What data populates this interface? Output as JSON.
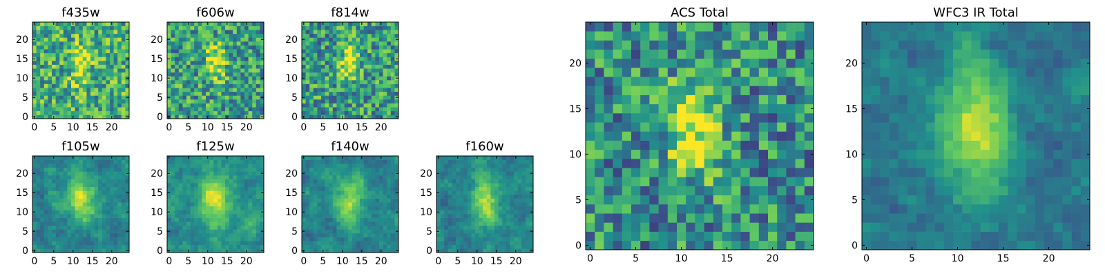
{
  "chart_data": {
    "type": "heatmap",
    "colormap": "viridis",
    "colors": {
      "low": "#440154",
      "mid_low": "#3b528b",
      "mid": "#21918c",
      "mid_high": "#5ec962",
      "high": "#fde725"
    },
    "grid_size": [
      25,
      25
    ],
    "xlim": [
      0,
      24
    ],
    "ylim": [
      0,
      24
    ],
    "origin": "lower",
    "panels": [
      {
        "title": "f435w",
        "group": "small",
        "xticks": [
          "0",
          "5",
          "10",
          "15",
          "20"
        ],
        "yticks": [
          "0",
          "5",
          "10",
          "15",
          "20"
        ],
        "source": {
          "cx": 12,
          "cy": 13,
          "sx": 1.6,
          "sy": 3.5,
          "peak": 0.45
        },
        "background": 0.62,
        "noise": 0.3,
        "smooth": 0
      },
      {
        "title": "f606w",
        "group": "small",
        "xticks": [
          "0",
          "5",
          "10",
          "15",
          "20"
        ],
        "yticks": [
          "0",
          "5",
          "10",
          "15",
          "20"
        ],
        "source": {
          "cx": 12,
          "cy": 14,
          "sx": 1.7,
          "sy": 3.5,
          "peak": 0.45
        },
        "background": 0.55,
        "noise": 0.3,
        "smooth": 0
      },
      {
        "title": "f814w",
        "group": "small",
        "xticks": [
          "0",
          "5",
          "10",
          "15",
          "20"
        ],
        "yticks": [
          "0",
          "5",
          "10",
          "15",
          "20"
        ],
        "source": {
          "cx": 12,
          "cy": 14,
          "sx": 1.7,
          "sy": 3.5,
          "peak": 0.45
        },
        "background": 0.55,
        "noise": 0.3,
        "smooth": 0
      },
      {
        "title": "f105w",
        "group": "small",
        "xticks": [
          "0",
          "5",
          "10",
          "15",
          "20"
        ],
        "yticks": [
          "0",
          "5",
          "10",
          "15",
          "20"
        ],
        "source": {
          "cx": 12,
          "cy": 13,
          "sx": 2.5,
          "sy": 4.5,
          "peak": 0.5
        },
        "background": 0.45,
        "noise": 0.22,
        "smooth": 1
      },
      {
        "title": "f125w",
        "group": "small",
        "xticks": [
          "0",
          "5",
          "10",
          "15",
          "20"
        ],
        "yticks": [
          "0",
          "5",
          "10",
          "15",
          "20"
        ],
        "source": {
          "cx": 12,
          "cy": 13,
          "sx": 2.5,
          "sy": 4.5,
          "peak": 0.5
        },
        "background": 0.5,
        "noise": 0.22,
        "smooth": 1
      },
      {
        "title": "f140w",
        "group": "small",
        "xticks": [
          "0",
          "5",
          "10",
          "15",
          "20"
        ],
        "yticks": [
          "0",
          "5",
          "10",
          "15",
          "20"
        ],
        "source": {
          "cx": 12,
          "cy": 13,
          "sx": 2.3,
          "sy": 4.5,
          "peak": 0.5
        },
        "background": 0.45,
        "noise": 0.22,
        "smooth": 1
      },
      {
        "title": "f160w",
        "group": "small",
        "xticks": [
          "0",
          "5",
          "10",
          "15",
          "20"
        ],
        "yticks": [
          "0",
          "5",
          "10",
          "15",
          "20"
        ],
        "source": {
          "cx": 12,
          "cy": 13,
          "sx": 2.3,
          "sy": 4.5,
          "peak": 0.5
        },
        "background": 0.45,
        "noise": 0.22,
        "smooth": 1
      },
      {
        "title": "ACS Total",
        "group": "large",
        "xticks": [
          "0",
          "5",
          "10",
          "15",
          "20"
        ],
        "yticks": [
          "0",
          "5",
          "10",
          "15",
          "20"
        ],
        "source": {
          "cx": 11.5,
          "cy": 13,
          "sx": 2,
          "sy": 3.8,
          "peak": 0.5
        },
        "background": 0.5,
        "noise": 0.3,
        "smooth": 0
      },
      {
        "title": "WFC3 IR Total",
        "group": "large",
        "xticks": [
          "0",
          "5",
          "10",
          "15",
          "20"
        ],
        "yticks": [
          "0",
          "5",
          "10",
          "15",
          "20"
        ],
        "source": {
          "cx": 12,
          "cy": 13,
          "sx": 2.5,
          "sy": 5,
          "peak": 0.55
        },
        "background": 0.4,
        "noise": 0.18,
        "smooth": 1
      }
    ]
  }
}
